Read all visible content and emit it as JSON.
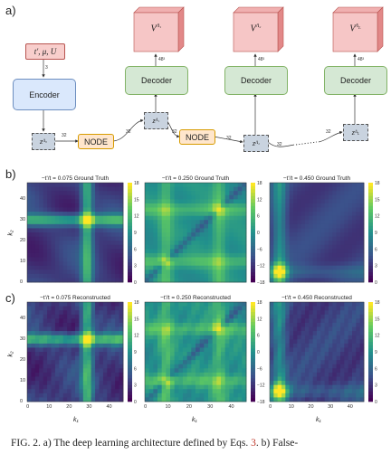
{
  "panels": {
    "a": "a)",
    "b": "b)",
    "c": "c)"
  },
  "diagram": {
    "input_label": "t', μ, U",
    "encoder_label": "Encoder",
    "decoder_label": "Decoder",
    "node_label": "NODE",
    "latents": [
      "z^{Λ_0}",
      "z^{Λ_1}",
      "z^{Λ_2}",
      "z^{Λ_L}"
    ],
    "outputs": [
      "V^{Λ_1}",
      "V^{Λ_2}",
      "V^{Λ_L}"
    ],
    "dims": {
      "input": "3",
      "latent": "32",
      "output": "48³"
    }
  },
  "heatmaps": {
    "row_b_titles": [
      "−t'/t = 0.075 Ground Truth",
      "−t'/t = 0.250 Ground Truth",
      "−t'/t = 0.450 Ground Truth"
    ],
    "row_c_titles": [
      "−t'/t = 0.075 Reconstructed",
      "−t'/t = 0.250 Reconstructed",
      "−t'/t = 0.450 Reconstructed"
    ],
    "xlabel": "k₁",
    "ylabel": "k₂",
    "axis_ticks": [
      "0",
      "10",
      "20",
      "30",
      "40"
    ],
    "colorbar_ticks": {
      "col1": [
        "18",
        "15",
        "12",
        "9",
        "6",
        "3",
        "0"
      ],
      "col2": [
        "18",
        "12",
        "6",
        "0",
        "−6",
        "−12",
        "−18"
      ],
      "col3": [
        "18",
        "15",
        "12",
        "9",
        "6",
        "3",
        "0"
      ]
    },
    "colormap": [
      "#440154",
      "#3b528b",
      "#21918c",
      "#5ec962",
      "#fde725"
    ]
  },
  "caption": {
    "prefix": "FIG. 2.   a) The deep learning architecture defined by Eqs. ",
    "ref": "3",
    "suffix": ". b) False-"
  }
}
